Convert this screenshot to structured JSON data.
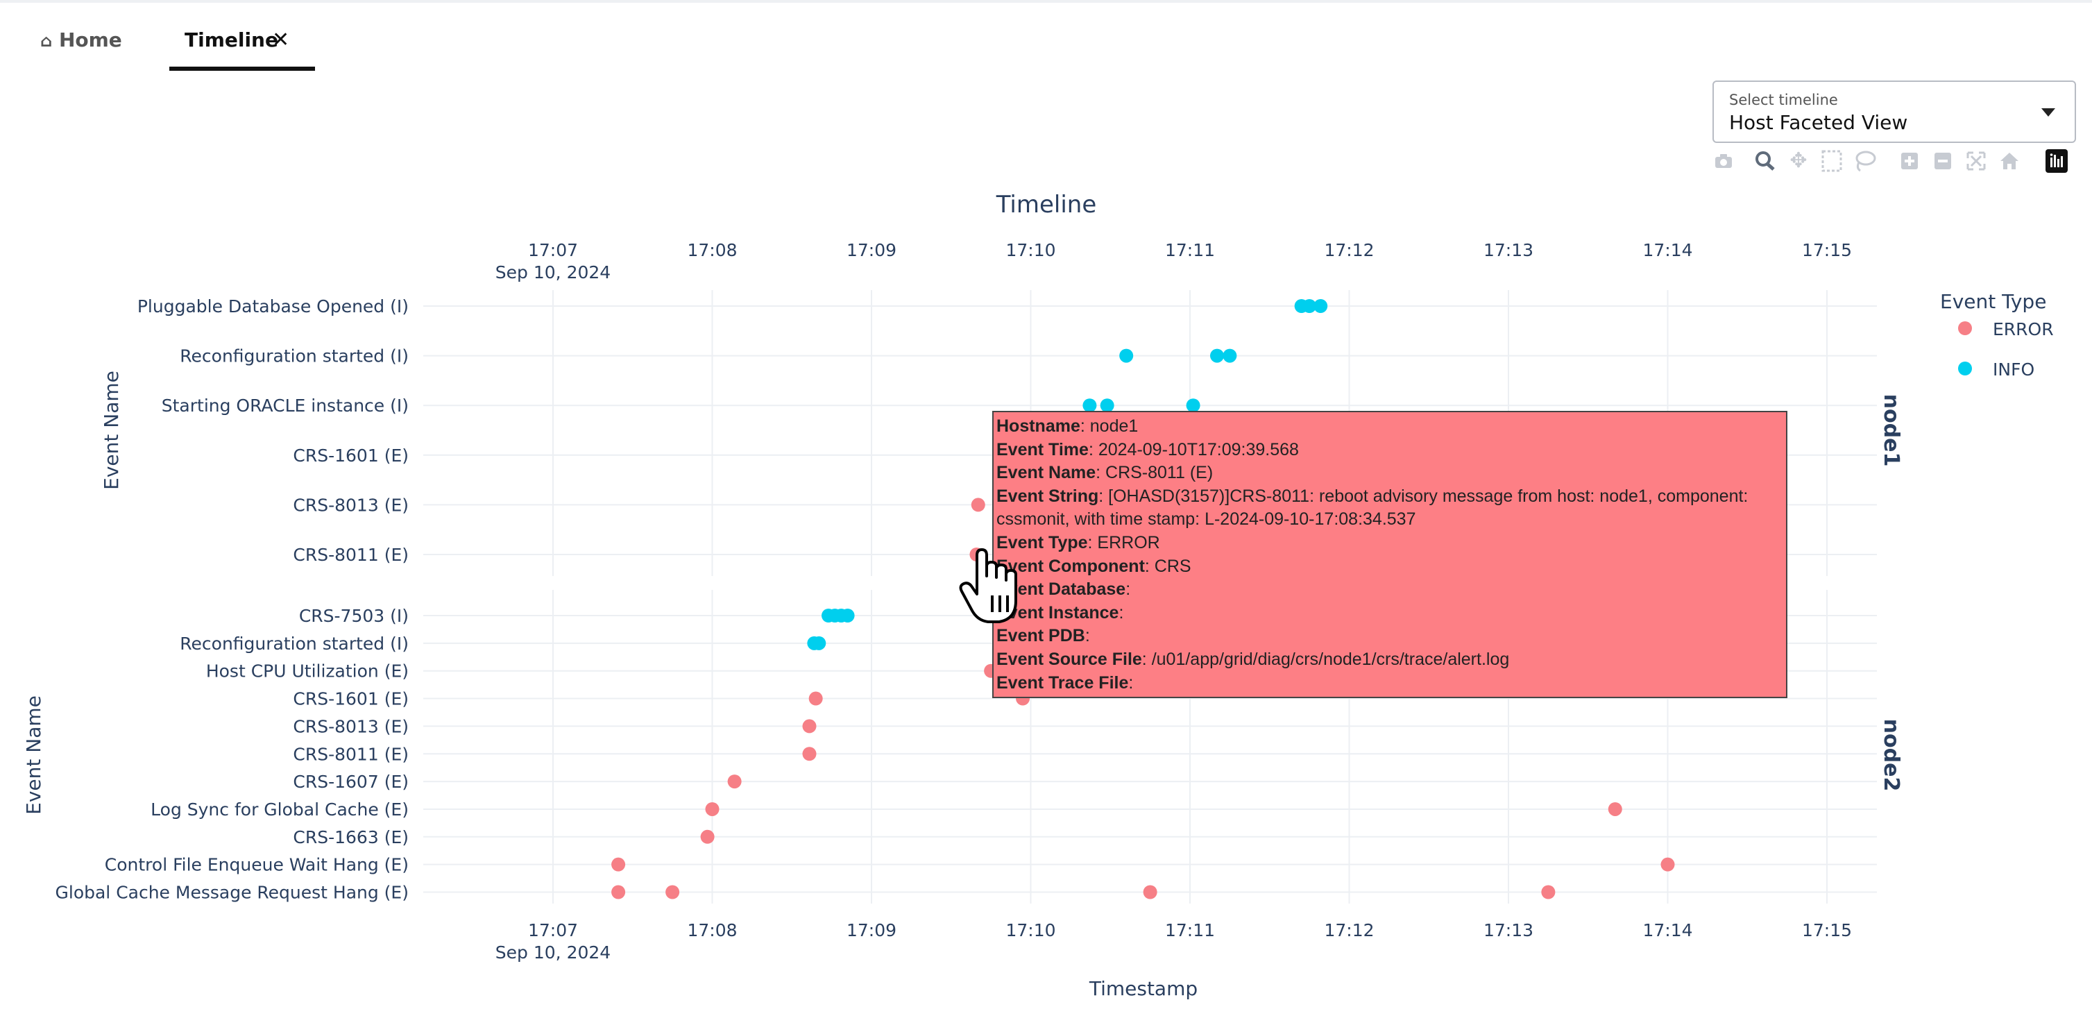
{
  "tabs": [
    {
      "label": "Home",
      "icon": "home-icon",
      "active": false
    },
    {
      "label": "Timeline",
      "icon": "close-icon",
      "active": true
    }
  ],
  "select": {
    "label": "Select timeline",
    "value": "Host Faceted View"
  },
  "modebar": [
    "camera-icon",
    "zoom-icon",
    "pan-icon",
    "box-select-icon",
    "lasso-icon",
    "zoom-in-icon",
    "zoom-out-icon",
    "autoscale-icon",
    "reset-axes-icon",
    "plotly-logo-icon"
  ],
  "chart_data": {
    "type": "scatter",
    "title": "Timeline",
    "xlabel": "Timestamp",
    "ylabel": "Event Name",
    "x_ticks": [
      "17:07",
      "17:08",
      "17:09",
      "17:10",
      "17:11",
      "17:12",
      "17:13",
      "17:14",
      "17:15"
    ],
    "x_tick_date": "Sep 10, 2024",
    "xlim": [
      6.7,
      15.3
    ],
    "grid": true,
    "legend": {
      "title": "Event Type",
      "position": "top-right",
      "entries": [
        "ERROR",
        "INFO"
      ]
    },
    "colors": {
      "ERROR": "#f67f86",
      "INFO": "#00cfee"
    },
    "facets": [
      {
        "name": "node1",
        "categories": [
          "Pluggable Database Opened (I)",
          "Reconfiguration started (I)",
          "Starting ORACLE instance (I)",
          "CRS-1601 (E)",
          "CRS-8013 (E)",
          "CRS-8011 (E)"
        ],
        "series": [
          {
            "name": "INFO",
            "points": [
              {
                "y": "Pluggable Database Opened (I)",
                "x": [
                  11.7,
                  11.75,
                  11.82
                ]
              },
              {
                "y": "Reconfiguration started (I)",
                "x": [
                  10.6,
                  11.17,
                  11.25
                ]
              },
              {
                "y": "Starting ORACLE instance (I)",
                "x": [
                  10.37,
                  10.48,
                  11.02
                ]
              }
            ]
          },
          {
            "name": "ERROR",
            "points": [
              {
                "y": "CRS-8013 (E)",
                "x": [
                  9.67
                ]
              },
              {
                "y": "CRS-8011 (E)",
                "x": [
                  9.66
                ]
              }
            ]
          }
        ]
      },
      {
        "name": "node2",
        "categories": [
          "CRS-7503 (I)",
          "Reconfiguration started (I)",
          "Host CPU Utilization (E)",
          "CRS-1601 (E)",
          "CRS-8013 (E)",
          "CRS-8011 (E)",
          "CRS-1607 (E)",
          "Log Sync for Global Cache (E)",
          "CRS-1663 (E)",
          "Control File Enqueue Wait Hang (E)",
          "Global Cache Message Request Hang (E)"
        ],
        "series": [
          {
            "name": "INFO",
            "points": [
              {
                "y": "CRS-7503 (I)",
                "x": [
                  8.73,
                  8.77,
                  8.81,
                  8.85
                ]
              },
              {
                "y": "Reconfiguration started (I)",
                "x": [
                  8.64,
                  8.67
                ]
              }
            ]
          },
          {
            "name": "ERROR",
            "points": [
              {
                "y": "Host CPU Utilization (E)",
                "x": [
                  9.75
                ]
              },
              {
                "y": "CRS-1601 (E)",
                "x": [
                  8.65,
                  9.95
                ]
              },
              {
                "y": "CRS-8013 (E)",
                "x": [
                  8.61
                ]
              },
              {
                "y": "CRS-8011 (E)",
                "x": [
                  8.61
                ]
              },
              {
                "y": "CRS-1607 (E)",
                "x": [
                  8.14
                ]
              },
              {
                "y": "Log Sync for Global Cache (E)",
                "x": [
                  8.0,
                  13.67
                ]
              },
              {
                "y": "CRS-1663 (E)",
                "x": [
                  7.97
                ]
              },
              {
                "y": "Control File Enqueue Wait Hang (E)",
                "x": [
                  7.41,
                  14.0
                ]
              },
              {
                "y": "Global Cache Message Request Hang (E)",
                "x": [
                  7.41,
                  7.75,
                  10.75,
                  13.25
                ]
              }
            ]
          }
        ]
      }
    ]
  },
  "tooltip": {
    "fields": [
      {
        "key": "Hostname",
        "value": "node1"
      },
      {
        "key": "Event Time",
        "value": "2024-09-10T17:09:39.568"
      },
      {
        "key": "Event Name",
        "value": "CRS-8011 (E)"
      },
      {
        "key": "Event String",
        "value": "[OHASD(3157)]CRS-8011: reboot advisory message from host: node1, component: cssmonit, with time stamp: L-2024-09-10-17:08:34.537"
      },
      {
        "key": "Event Type",
        "value": "ERROR"
      },
      {
        "key": "Event Component",
        "value": "CRS"
      },
      {
        "key": "Event Database",
        "value": ""
      },
      {
        "key": "Event Instance",
        "value": ""
      },
      {
        "key": "Event PDB",
        "value": ""
      },
      {
        "key": "Event Source File",
        "value": "/u01/app/grid/diag/crs/node1/crs/trace/alert.log"
      },
      {
        "key": "Event Trace File",
        "value": ""
      }
    ]
  }
}
